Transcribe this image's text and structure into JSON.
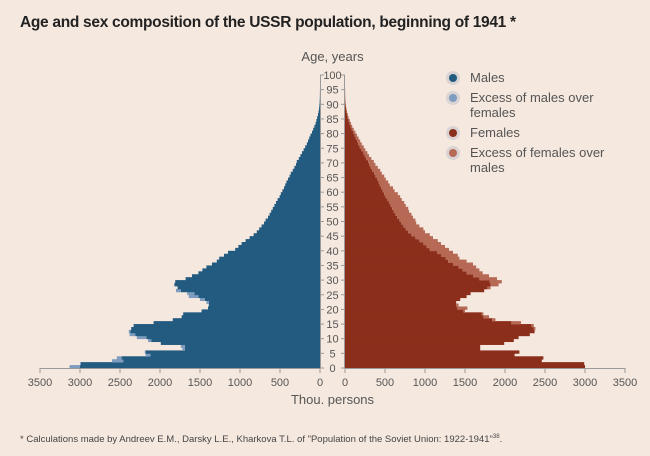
{
  "title": "Age and sex composition of the USSR population, beginning of 1941 *",
  "footnote": {
    "text": "* Calculations made  by Andreev E.M., Darsky L.E., Kharkova T.L. of \"Population of the Soviet Union: 1922-1941\"",
    "ref": "38",
    "end": "."
  },
  "legend": [
    {
      "label": "Males",
      "color": "#225a80"
    },
    {
      "label": "Excess of males over females",
      "color": "#7d9cc0"
    },
    {
      "label": "Females",
      "color": "#8b2e1b"
    },
    {
      "label": "Excess of females over males",
      "color": "#b66a56"
    }
  ],
  "chart_data": {
    "type": "bar",
    "subtype": "population-pyramid",
    "title": "Age and sex composition of the USSR population, beginning of 1941 *",
    "ylabel": "Age, years",
    "xlabel": "Thou. persons",
    "age_ticks": [
      0,
      5,
      10,
      15,
      20,
      25,
      30,
      35,
      40,
      45,
      50,
      55,
      60,
      65,
      70,
      75,
      80,
      85,
      90,
      95,
      100
    ],
    "x_ticks_left": [
      3500,
      3000,
      2500,
      2000,
      1500,
      1000,
      500,
      0
    ],
    "x_ticks_right": [
      0,
      500,
      1000,
      1500,
      2000,
      2500,
      3000,
      3500
    ],
    "xlim": [
      0,
      3500
    ],
    "ylim": [
      0,
      100
    ],
    "colors": {
      "males": "#225a80",
      "males_excess": "#7d9cc0",
      "females": "#8b2e1b",
      "females_excess": "#b66a56"
    },
    "ages": [
      0,
      1,
      2,
      3,
      4,
      5,
      6,
      7,
      8,
      9,
      10,
      11,
      12,
      13,
      14,
      15,
      16,
      17,
      18,
      19,
      20,
      21,
      22,
      23,
      24,
      25,
      26,
      27,
      28,
      29,
      30,
      31,
      32,
      33,
      34,
      35,
      36,
      37,
      38,
      39,
      40,
      41,
      42,
      43,
      44,
      45,
      46,
      47,
      48,
      49,
      50,
      51,
      52,
      53,
      54,
      55,
      56,
      57,
      58,
      59,
      60,
      61,
      62,
      63,
      64,
      65,
      66,
      67,
      68,
      69,
      70,
      71,
      72,
      73,
      74,
      75,
      76,
      77,
      78,
      79,
      80,
      81,
      82,
      83,
      84,
      85,
      86,
      87,
      88,
      89,
      90,
      91,
      92,
      93,
      94,
      95,
      96,
      97,
      98,
      99
    ],
    "series": [
      {
        "name": "Males",
        "values": [
          3130,
          3000,
          2600,
          2540,
          2180,
          2190,
          1720,
          1740,
          1990,
          2150,
          2290,
          2380,
          2390,
          2360,
          2330,
          2080,
          1840,
          1730,
          1710,
          1480,
          1400,
          1390,
          1420,
          1500,
          1640,
          1660,
          1800,
          1780,
          1820,
          1810,
          1680,
          1600,
          1520,
          1470,
          1420,
          1350,
          1290,
          1260,
          1200,
          1150,
          1060,
          1020,
          980,
          930,
          880,
          830,
          790,
          760,
          730,
          700,
          680,
          650,
          630,
          610,
          590,
          570,
          550,
          530,
          505,
          490,
          470,
          450,
          435,
          420,
          400,
          380,
          365,
          340,
          320,
          300,
          290,
          265,
          245,
          225,
          205,
          185,
          165,
          150,
          135,
          120,
          100,
          85,
          70,
          55,
          45,
          35,
          25,
          18,
          12,
          8,
          5,
          3,
          2,
          1,
          1,
          0,
          0,
          0,
          0,
          0
        ]
      },
      {
        "name": "Females",
        "values": [
          3000,
          2990,
          2460,
          2480,
          2120,
          2180,
          1690,
          1690,
          1990,
          2110,
          2170,
          2310,
          2370,
          2380,
          2360,
          2200,
          1880,
          1800,
          1730,
          1500,
          1530,
          1420,
          1390,
          1440,
          1520,
          1570,
          1740,
          1820,
          1920,
          1960,
          1900,
          1800,
          1720,
          1680,
          1640,
          1600,
          1520,
          1430,
          1410,
          1350,
          1300,
          1250,
          1200,
          1160,
          1100,
          1060,
          1000,
          980,
          930,
          890,
          880,
          850,
          830,
          800,
          790,
          760,
          740,
          710,
          690,
          660,
          620,
          600,
          560,
          540,
          510,
          490,
          460,
          440,
          410,
          380,
          360,
          330,
          300,
          280,
          255,
          235,
          210,
          190,
          170,
          150,
          130,
          110,
          90,
          75,
          60,
          45,
          35,
          25,
          18,
          12,
          8,
          5,
          3,
          2,
          1,
          1,
          0,
          0,
          0,
          0
        ]
      }
    ],
    "legend": [
      "Males",
      "Excess of males over females",
      "Females",
      "Excess of females over males"
    ],
    "legend_position": "top-right"
  }
}
